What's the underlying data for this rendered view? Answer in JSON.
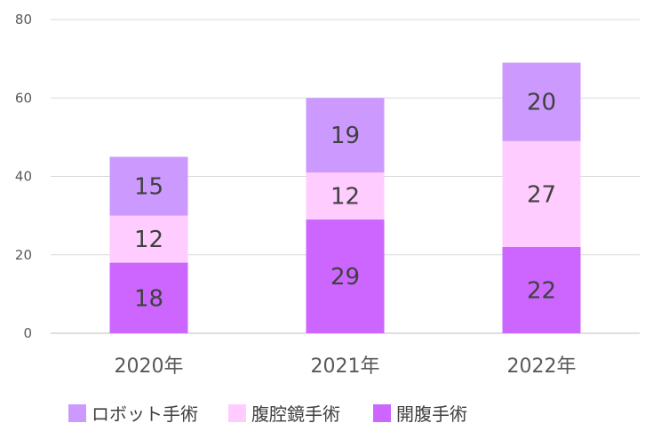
{
  "chart_data": {
    "type": "bar",
    "stacked": true,
    "categories": [
      "2020年",
      "2021年",
      "2022年"
    ],
    "series": [
      {
        "name": "開腹手術",
        "values": [
          18,
          29,
          22
        ],
        "color": "#cc66ff"
      },
      {
        "name": "腹腔鏡手術",
        "values": [
          12,
          12,
          27
        ],
        "color": "#ffccff"
      },
      {
        "name": "ロボット手術",
        "values": [
          15,
          19,
          20
        ],
        "color": "#cc99ff"
      }
    ],
    "legend_order": [
      "ロボット手術",
      "腹腔鏡手術",
      "開腹手術"
    ],
    "ylim": [
      0,
      80
    ],
    "yticks": [
      0,
      20,
      40,
      60,
      80
    ],
    "grid": true,
    "legend_position": "bottom-left",
    "title": "",
    "xlabel": "",
    "ylabel": ""
  }
}
